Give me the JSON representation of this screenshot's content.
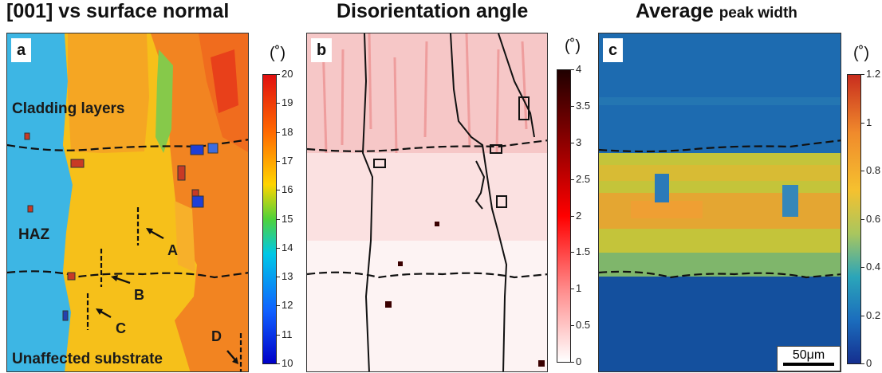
{
  "panels": [
    {
      "title": "[001] vs surface normal",
      "letter": "a",
      "labels": {
        "cladding": "Cladding layers",
        "haz": "HAZ",
        "substrate": "Unaffected substrate",
        "A": "A",
        "B": "B",
        "C": "C",
        "D": "D"
      },
      "colorbar": {
        "unit": "(˚)",
        "scale": "jet",
        "min": 10,
        "max": 20,
        "ticks": [
          "20",
          "19",
          "18",
          "17",
          "16",
          "15",
          "14",
          "13",
          "12",
          "11",
          "10"
        ]
      }
    },
    {
      "title": "Disorientation angle",
      "letter": "b",
      "colorbar": {
        "unit": "(˚)",
        "scale": "white-red-black",
        "min": 0,
        "max": 4,
        "ticks": [
          "4",
          "3.5",
          "3",
          "2.5",
          "2",
          "1.5",
          "1",
          "0.5",
          "0"
        ]
      }
    },
    {
      "title_main": "Average",
      "title_small": "peak width",
      "letter": "c",
      "scalebar": "50μm",
      "colorbar": {
        "unit": "(˚)",
        "scale": "parula",
        "min": 0,
        "max": 1.2,
        "ticks": [
          "1.2",
          "1",
          "0.8",
          "0.6",
          "0.4",
          "0.2",
          "0"
        ]
      }
    }
  ]
}
